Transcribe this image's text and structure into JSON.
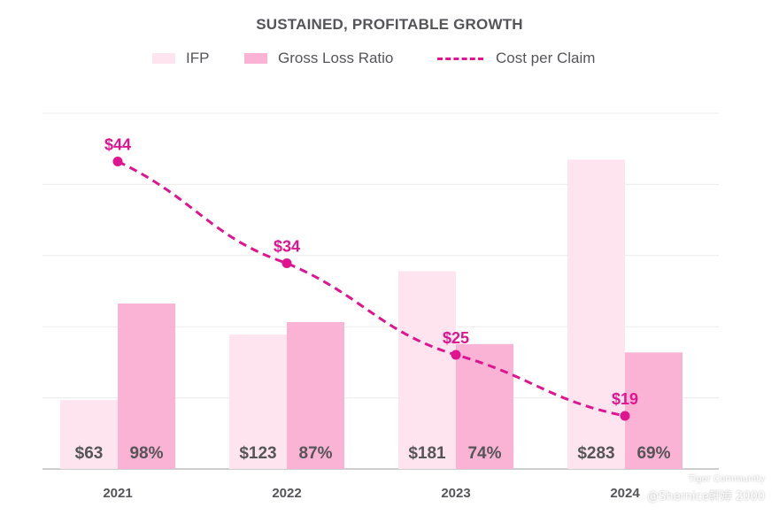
{
  "chart_data": {
    "type": "bar",
    "title": "SUSTAINED, PROFITABLE GROWTH",
    "categories": [
      "2021",
      "2022",
      "2023",
      "2024"
    ],
    "series": [
      {
        "name": "IFP",
        "kind": "bar",
        "color": "#fde4ef",
        "values": [
          63,
          123,
          181,
          283
        ],
        "labels": [
          "$63",
          "$123",
          "$181",
          "$283"
        ]
      },
      {
        "name": "Gross Loss Ratio",
        "kind": "bar",
        "color": "#fab3d5",
        "values": [
          98,
          87,
          74,
          69
        ],
        "labels": [
          "98%",
          "87%",
          "74%",
          "69%"
        ]
      },
      {
        "name": "Cost per Claim",
        "kind": "line",
        "style": "dashed",
        "color": "#e0148f",
        "values": [
          44,
          34,
          25,
          19
        ],
        "labels": [
          "$44",
          "$34",
          "$25",
          "$19"
        ]
      }
    ],
    "grid": true,
    "legend_position": "top"
  },
  "watermark": {
    "line1": "Tiger Community",
    "line2": "@Shernice軒嫜 2000"
  }
}
